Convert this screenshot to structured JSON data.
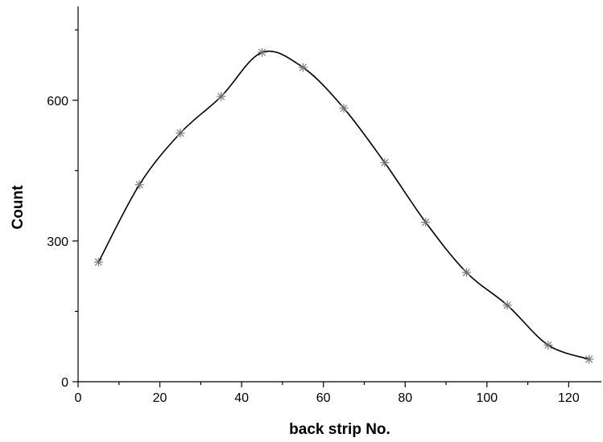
{
  "chart_data": {
    "type": "line",
    "title": "",
    "xlabel": "back strip No.",
    "ylabel": "Count",
    "xlim": [
      0,
      128
    ],
    "ylim": [
      0,
      800
    ],
    "x_ticks": [
      0,
      20,
      40,
      60,
      80,
      100,
      120
    ],
    "x_tick_labels": [
      "0",
      "20",
      "40",
      "60",
      "80",
      "100",
      "120"
    ],
    "y_ticks": [
      0,
      300,
      600
    ],
    "y_tick_labels": [
      "0",
      "300",
      "600"
    ],
    "grid": false,
    "legend": "none",
    "series": [
      {
        "marker": "asterisk",
        "line": "smooth",
        "color": "#000000",
        "marker_color": "#6e6e6e",
        "x": [
          5,
          15,
          25,
          35,
          45,
          55,
          65,
          75,
          85,
          95,
          105,
          115,
          125
        ],
        "y": [
          255,
          420,
          530,
          608,
          702,
          670,
          583,
          467,
          340,
          233,
          163,
          78,
          48
        ]
      }
    ]
  }
}
